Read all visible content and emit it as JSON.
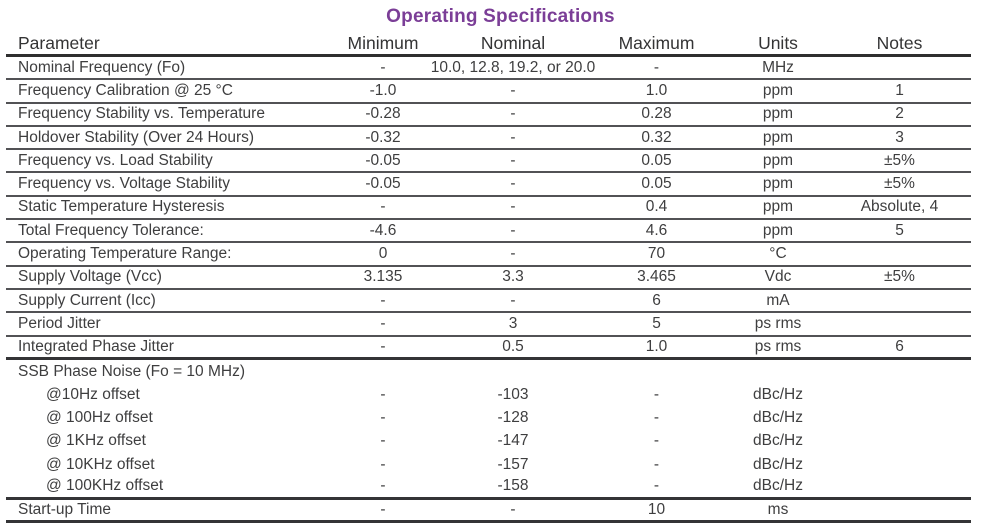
{
  "title": "Operating Specifications",
  "colors": {
    "title": "#7b3e97",
    "text": "#3e3e3f",
    "line": "#525255"
  },
  "columns": [
    "Parameter",
    "Minimum",
    "Nominal",
    "Maximum",
    "Units",
    "Notes"
  ],
  "rows": [
    {
      "parameter": "Nominal Frequency (Fo)",
      "minimum": "-",
      "nominal": "10.0, 12.8, 19.2, or 20.0",
      "maximum": "-",
      "units": "MHz",
      "notes": "",
      "separator_below": true
    },
    {
      "parameter": "Frequency Calibration @ 25 °C",
      "minimum": "-1.0",
      "nominal": "-",
      "maximum": "1.0",
      "units": "ppm",
      "notes": "1",
      "separator_below": true
    },
    {
      "parameter": "Frequency Stability vs. Temperature",
      "minimum": "-0.28",
      "nominal": "-",
      "maximum": "0.28",
      "units": "ppm",
      "notes": "2",
      "separator_below": true
    },
    {
      "parameter": "Holdover Stability (Over 24 Hours)",
      "minimum": "-0.32",
      "nominal": "-",
      "maximum": "0.32",
      "units": "ppm",
      "notes": "3",
      "separator_below": true
    },
    {
      "parameter": "Frequency vs. Load Stability",
      "minimum": "-0.05",
      "nominal": "-",
      "maximum": "0.05",
      "units": "ppm",
      "notes": "±5%",
      "separator_below": true
    },
    {
      "parameter": "Frequency vs. Voltage Stability",
      "minimum": "-0.05",
      "nominal": "-",
      "maximum": "0.05",
      "units": "ppm",
      "notes": "±5%",
      "separator_below": true
    },
    {
      "parameter": "Static Temperature Hysteresis",
      "minimum": "-",
      "nominal": "-",
      "maximum": "0.4",
      "units": "ppm",
      "notes": "Absolute, 4",
      "separator_below": true
    },
    {
      "parameter": "Total Frequency Tolerance:",
      "minimum": "-4.6",
      "nominal": "-",
      "maximum": "4.6",
      "units": "ppm",
      "notes": "5",
      "separator_below": true
    },
    {
      "parameter": "Operating Temperature Range:",
      "minimum": "0",
      "nominal": "-",
      "maximum": "70",
      "units": "°C",
      "notes": "",
      "separator_below": true
    },
    {
      "parameter": "Supply Voltage (Vcc)",
      "minimum": "3.135",
      "nominal": "3.3",
      "maximum": "3.465",
      "units": "Vdc",
      "notes": "±5%",
      "separator_below": true
    },
    {
      "parameter": "Supply Current (Icc)",
      "minimum": "-",
      "nominal": "-",
      "maximum": "6",
      "units": "mA",
      "notes": "",
      "separator_below": true
    },
    {
      "parameter": "Period Jitter",
      "minimum": "-",
      "nominal": "3",
      "maximum": "5",
      "units": "ps rms",
      "notes": "",
      "separator_below": true
    },
    {
      "parameter": "Integrated Phase Jitter",
      "minimum": "-",
      "nominal": "0.5",
      "maximum": "1.0",
      "units": "ps rms",
      "notes": "6",
      "separator_below": true,
      "thick_below": true
    },
    {
      "parameter": "SSB Phase Noise (Fo = 10 MHz)",
      "minimum": "",
      "nominal": "",
      "maximum": "",
      "units": "",
      "notes": "",
      "separator_below": false
    },
    {
      "parameter": "@10Hz offset",
      "minimum": "-",
      "nominal": "-103",
      "maximum": "-",
      "units": "dBc/Hz",
      "notes": "",
      "indent": true,
      "separator_below": false
    },
    {
      "parameter": "@ 100Hz offset",
      "minimum": "-",
      "nominal": "-128",
      "maximum": "-",
      "units": "dBc/Hz",
      "notes": "",
      "indent": true,
      "separator_below": false
    },
    {
      "parameter": "@ 1KHz offset",
      "minimum": "-",
      "nominal": "-147",
      "maximum": "-",
      "units": "dBc/Hz",
      "notes": "",
      "indent": true,
      "separator_below": false
    },
    {
      "parameter": "@ 10KHz offset",
      "minimum": "-",
      "nominal": "-157",
      "maximum": "-",
      "units": "dBc/Hz",
      "notes": "",
      "indent": true,
      "separator_below": false
    },
    {
      "parameter": "@ 100KHz offset",
      "minimum": "-",
      "nominal": "-158",
      "maximum": "-",
      "units": "dBc/Hz",
      "notes": "",
      "indent": true,
      "separator_below": true,
      "thick_below": true
    },
    {
      "parameter": "Start-up Time",
      "minimum": "-",
      "nominal": "-",
      "maximum": "10",
      "units": "ms",
      "notes": "",
      "separator_below": true,
      "thick_below": true
    }
  ]
}
